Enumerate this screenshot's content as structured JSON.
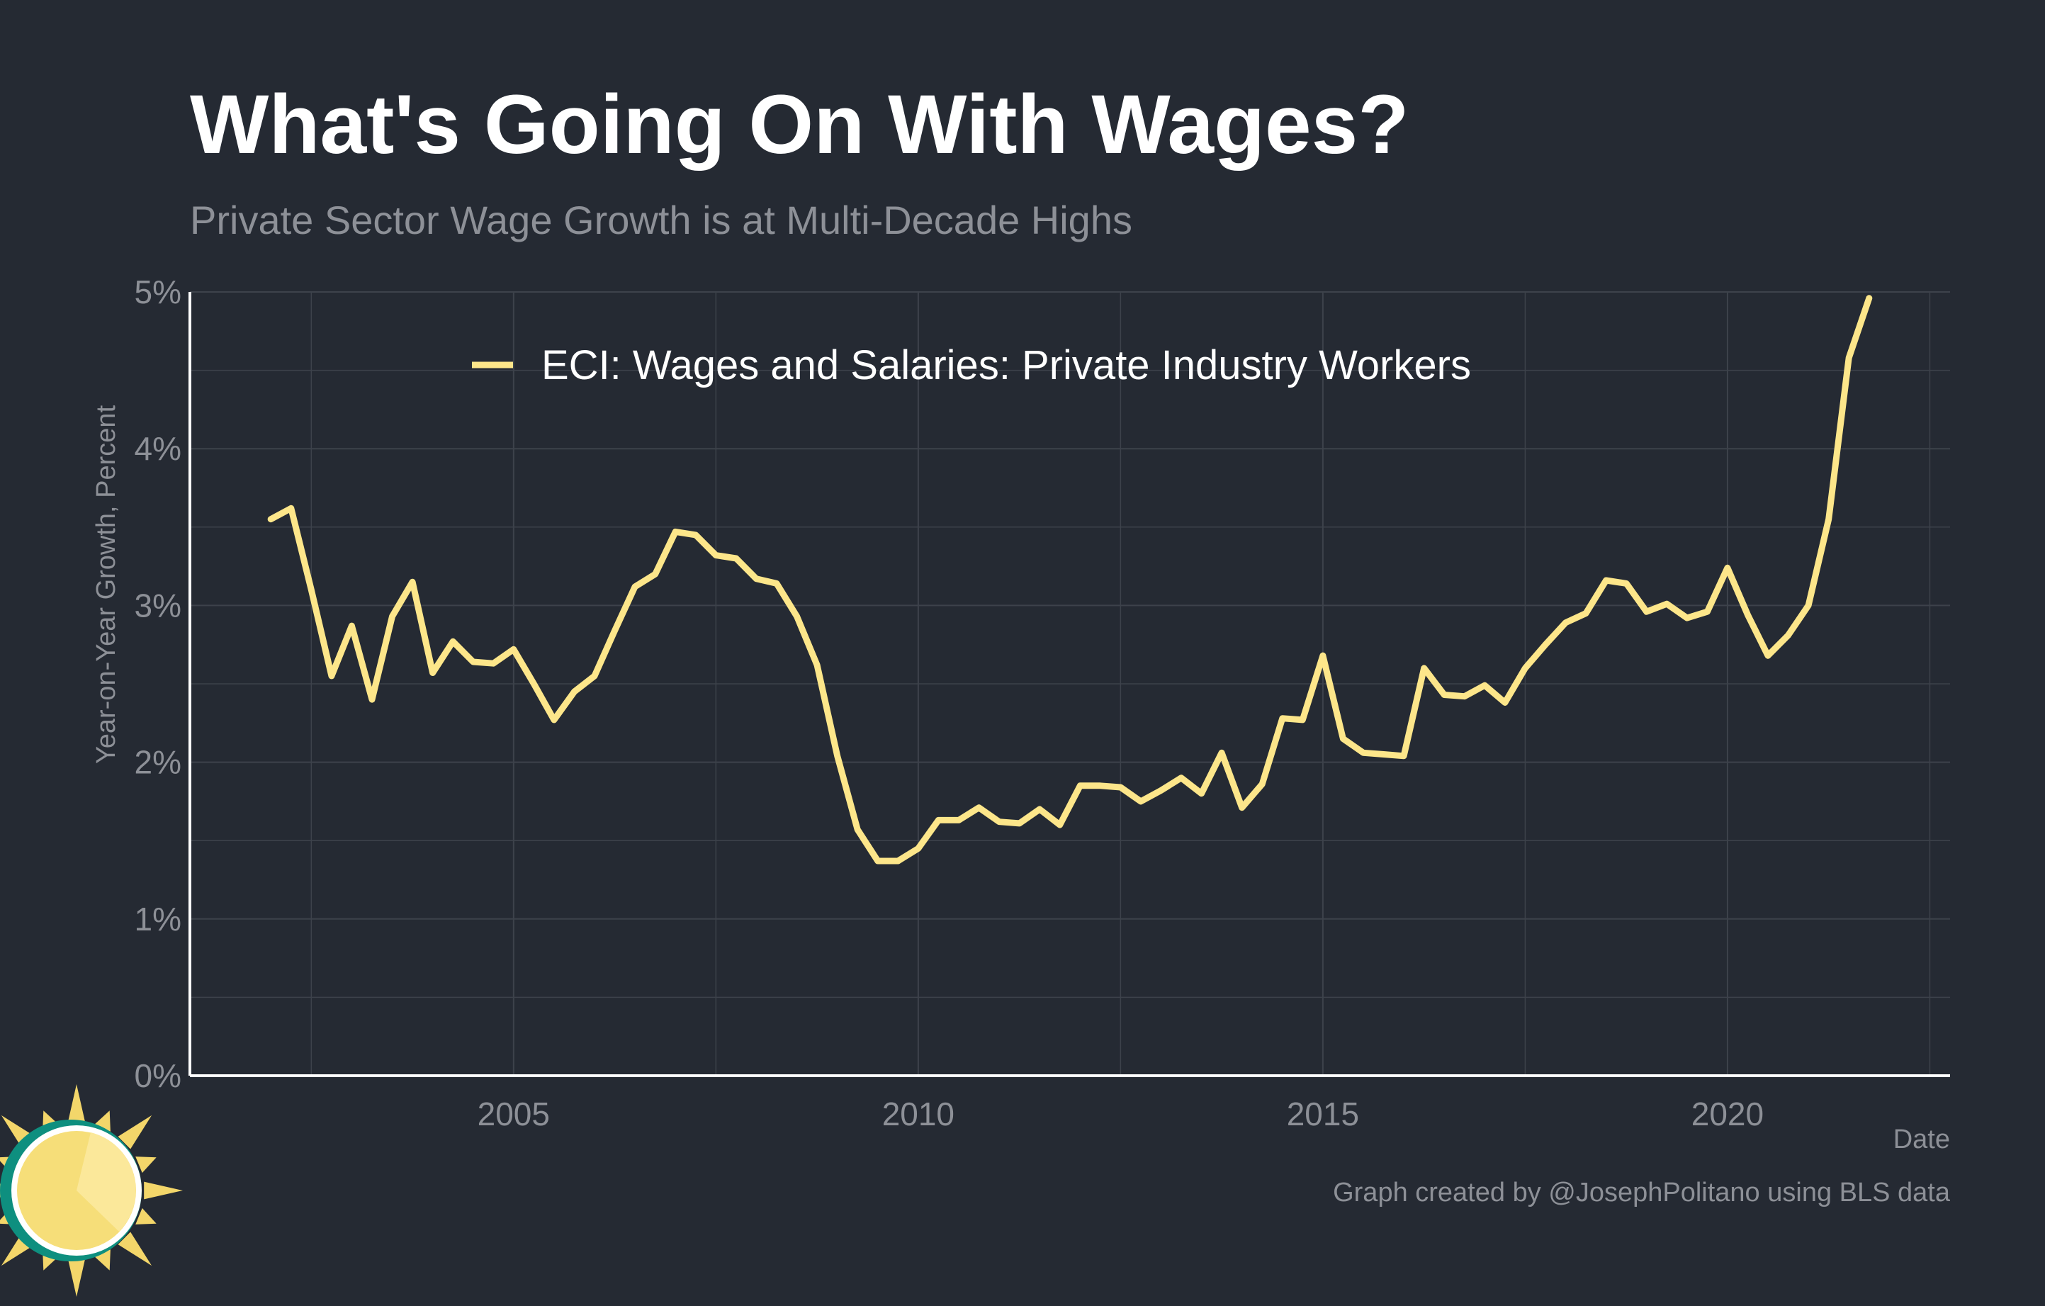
{
  "header": {
    "title": "What's Going On With Wages?",
    "subtitle": "Private Sector Wage Growth is at Multi-Decade Highs"
  },
  "caption": "Graph created by @JosephPolitano using BLS data",
  "colors": {
    "background": "#252a33",
    "series": "#fde68a",
    "grid": "#3d424b",
    "axis": "#ffffff",
    "muted_text": "#8d9097"
  },
  "logo": {
    "icon": "sun-clock-icon"
  },
  "chart_data": {
    "type": "line",
    "title": "What's Going On With Wages?",
    "subtitle": "Private Sector Wage Growth is at Multi-Decade Highs",
    "xlabel": "Date",
    "ylabel": "Year-on-Year Growth, Percent",
    "xlim": [
      2001.0,
      2022.75
    ],
    "ylim": [
      0,
      5
    ],
    "x_ticks": [
      2005,
      2010,
      2015,
      2020
    ],
    "x_tick_labels": [
      "2005",
      "2010",
      "2015",
      "2020"
    ],
    "y_ticks": [
      0,
      1,
      2,
      3,
      4,
      5
    ],
    "y_tick_labels": [
      "0%",
      "1%",
      "2%",
      "3%",
      "4%",
      "5%"
    ],
    "grid": true,
    "legend_position": "top-left",
    "series": [
      {
        "name": "ECI: Wages and Salaries: Private Industry Workers",
        "x": [
          2002.0,
          2002.25,
          2002.5,
          2002.75,
          2003.0,
          2003.25,
          2003.5,
          2003.75,
          2004.0,
          2004.25,
          2004.5,
          2004.75,
          2005.0,
          2005.25,
          2005.5,
          2005.75,
          2006.0,
          2006.25,
          2006.5,
          2006.75,
          2007.0,
          2007.25,
          2007.5,
          2007.75,
          2008.0,
          2008.25,
          2008.5,
          2008.75,
          2009.0,
          2009.25,
          2009.5,
          2009.75,
          2010.0,
          2010.25,
          2010.5,
          2010.75,
          2011.0,
          2011.25,
          2011.5,
          2011.75,
          2012.0,
          2012.25,
          2012.5,
          2012.75,
          2013.0,
          2013.25,
          2013.5,
          2013.75,
          2014.0,
          2014.25,
          2014.5,
          2014.75,
          2015.0,
          2015.25,
          2015.5,
          2015.75,
          2016.0,
          2016.25,
          2016.5,
          2016.75,
          2017.0,
          2017.25,
          2017.5,
          2017.75,
          2018.0,
          2018.25,
          2018.5,
          2018.75,
          2019.0,
          2019.25,
          2019.5,
          2019.75,
          2020.0,
          2020.25,
          2020.5,
          2020.75,
          2021.0,
          2021.25,
          2021.5,
          2021.75
        ],
        "values": [
          3.55,
          3.62,
          3.1,
          2.55,
          2.87,
          2.4,
          2.93,
          3.15,
          2.57,
          2.77,
          2.64,
          2.63,
          2.72,
          2.5,
          2.27,
          2.45,
          2.55,
          2.84,
          3.12,
          3.2,
          3.47,
          3.45,
          3.32,
          3.3,
          3.17,
          3.14,
          2.93,
          2.62,
          2.04,
          1.57,
          1.37,
          1.37,
          1.45,
          1.63,
          1.63,
          1.71,
          1.62,
          1.61,
          1.7,
          1.6,
          1.85,
          1.85,
          1.84,
          1.75,
          1.82,
          1.9,
          1.8,
          2.06,
          1.71,
          1.86,
          2.28,
          2.27,
          2.68,
          2.15,
          2.06,
          2.05,
          2.04,
          2.6,
          2.43,
          2.42,
          2.49,
          2.38,
          2.6,
          2.75,
          2.89,
          2.95,
          3.16,
          3.14,
          2.96,
          3.01,
          2.92,
          2.96,
          3.24,
          2.94,
          2.68,
          2.81,
          3.0,
          3.55,
          4.58,
          4.96
        ]
      }
    ]
  }
}
